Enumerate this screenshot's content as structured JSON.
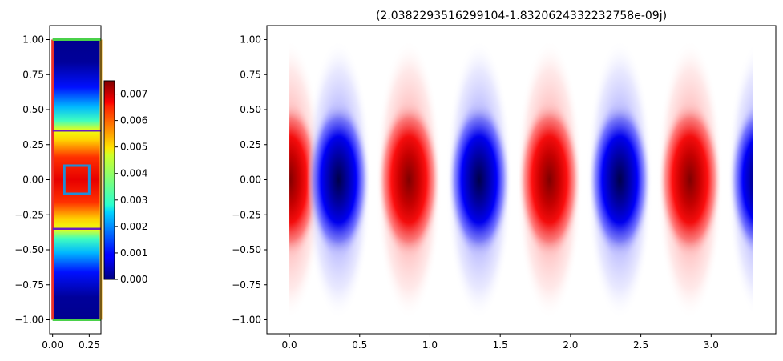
{
  "chart_data": [
    {
      "type": "heatmap",
      "title": "",
      "xlabel": "",
      "ylabel": "",
      "xlim": [
        -0.02,
        0.33
      ],
      "ylim": [
        -1.1,
        1.1
      ],
      "x_ticks": [
        "0.00",
        "0.25"
      ],
      "y_ticks": [
        "1.00",
        "0.75",
        "0.50",
        "0.25",
        "0.00",
        "−0.25",
        "−0.50",
        "−0.75",
        "−1.00"
      ],
      "colormap": "jet",
      "colorbar": {
        "range": [
          0.0,
          0.0075
        ],
        "ticks": [
          "0.000",
          "0.001",
          "0.002",
          "0.003",
          "0.004",
          "0.005",
          "0.006",
          "0.007"
        ]
      },
      "domain": {
        "x": [
          0.0,
          0.33
        ],
        "y": [
          -1.0,
          1.0
        ]
      },
      "core_boundaries_y": [
        0.35,
        -0.35
      ],
      "core_boundary_color": "#6a1fbf",
      "boundary_colors": {
        "left": "#e8312a",
        "right": "#f0b429",
        "top": "#4ad14a",
        "bottom": "#4ad14a"
      },
      "marked_region": {
        "x": [
          0.08,
          0.25
        ],
        "y": [
          -0.1,
          0.1
        ],
        "color": "#1f8fd8"
      }
    },
    {
      "type": "heatmap",
      "title": "(2.0382293516299104-1.8320624332232758e-09j)",
      "xlabel": "",
      "ylabel": "",
      "xlim": [
        -0.16,
        3.46
      ],
      "ylim": [
        -1.1,
        1.1
      ],
      "x_ticks": [
        "0.0",
        "0.5",
        "1.0",
        "1.5",
        "2.0",
        "2.5",
        "3.0"
      ],
      "y_ticks": [
        "1.00",
        "0.75",
        "0.50",
        "0.25",
        "0.00",
        "−0.25",
        "−0.50",
        "−0.75",
        "−1.00"
      ],
      "colormap": "seismic",
      "domain": {
        "x": [
          0.0,
          3.3
        ],
        "y": [
          -1.0,
          1.0
        ]
      },
      "wavelength": 1.0,
      "phase_peak_x": 0.0,
      "core_half_width": 0.35
    }
  ]
}
